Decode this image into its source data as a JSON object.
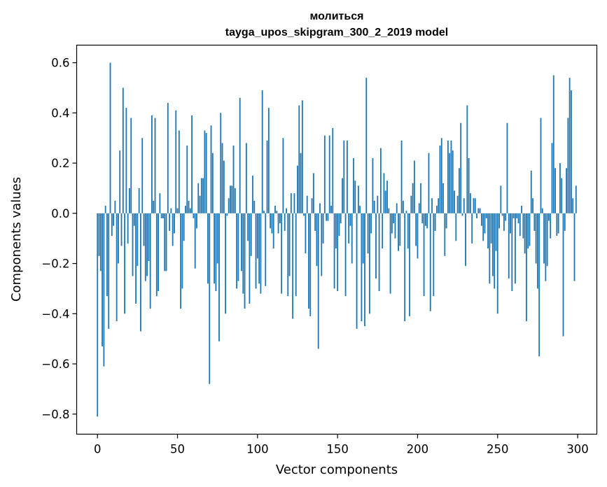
{
  "chart_data": {
    "type": "bar",
    "title": "молиться",
    "subtitle": "tayga_upos_skipgram_300_2_2019 model",
    "xlabel": "Vector components",
    "ylabel": "Components values",
    "xlim": [
      -13,
      312
    ],
    "ylim": [
      -0.88,
      0.67
    ],
    "xticks": [
      0,
      50,
      100,
      150,
      200,
      250,
      300
    ],
    "xtick_labels": [
      "0",
      "50",
      "100",
      "150",
      "200",
      "250",
      "300"
    ],
    "yticks": [
      -0.8,
      -0.6,
      -0.4,
      -0.2,
      0.0,
      0.2,
      0.4,
      0.6
    ],
    "ytick_labels": [
      "−0.8",
      "−0.6",
      "−0.4",
      "−0.2",
      "0.0",
      "0.2",
      "0.4",
      "0.6"
    ],
    "color": "#1f77b4",
    "values": [
      -0.81,
      -0.17,
      -0.23,
      -0.53,
      -0.61,
      0.03,
      -0.33,
      -0.46,
      0.6,
      -0.09,
      -0.05,
      0.05,
      -0.43,
      -0.2,
      0.25,
      -0.13,
      0.5,
      -0.4,
      0.42,
      -0.12,
      0.1,
      0.38,
      -0.25,
      -0.05,
      -0.36,
      -0.21,
      0.1,
      -0.47,
      0.3,
      -0.13,
      -0.27,
      -0.25,
      -0.19,
      -0.38,
      0.39,
      0.05,
      0.38,
      -0.33,
      -0.31,
      0.08,
      -0.02,
      -0.02,
      -0.23,
      -0.23,
      0.44,
      -0.07,
      0.02,
      -0.13,
      -0.08,
      0.41,
      0.02,
      0.33,
      -0.38,
      -0.3,
      -0.11,
      0.03,
      0.27,
      0.05,
      0.02,
      0.39,
      -0.02,
      -0.22,
      -0.06,
      0.12,
      0.07,
      0.14,
      0.14,
      0.33,
      0.32,
      -0.28,
      -0.68,
      0.35,
      0.24,
      -0.28,
      -0.31,
      -0.2,
      -0.51,
      0.4,
      0.28,
      0.21,
      -0.4,
      -0.01,
      0.06,
      0.11,
      0.11,
      0.27,
      0.1,
      -0.3,
      -0.27,
      0.46,
      -0.23,
      -0.32,
      -0.38,
      0.28,
      -0.11,
      -0.36,
      -0.17,
      0.15,
      0.05,
      -0.3,
      -0.18,
      -0.28,
      -0.32,
      0.49,
      0.01,
      -0.29,
      0.29,
      0.42,
      -0.06,
      -0.08,
      -0.14,
      0.03,
      0.01,
      -0.08,
      -0.04,
      -0.32,
      0.3,
      -0.07,
      0.02,
      -0.33,
      -0.25,
      0.08,
      -0.42,
      0.08,
      -0.33,
      0.19,
      0.43,
      0.24,
      0.45,
      -0.01,
      -0.16,
      0.07,
      -0.38,
      -0.41,
      0.06,
      0.16,
      -0.07,
      -0.21,
      -0.54,
      0.04,
      -0.25,
      -0.12,
      0.31,
      -0.03,
      -0.03,
      0.31,
      0.03,
      0.34,
      -0.3,
      -0.14,
      -0.31,
      -0.09,
      -0.04,
      0.14,
      0.29,
      -0.33,
      0.29,
      -0.12,
      -0.05,
      -0.2,
      0.22,
      0.13,
      -0.46,
      0.11,
      0.03,
      -0.43,
      -0.2,
      -0.45,
      0.54,
      -0.16,
      -0.4,
      -0.08,
      0.22,
      0.05,
      -0.26,
      0.07,
      -0.31,
      0.26,
      -0.14,
      0.16,
      0.09,
      0.13,
      0.02,
      -0.32,
      -0.08,
      -0.04,
      -0.1,
      0.04,
      -0.15,
      -0.13,
      0.29,
      0.05,
      -0.43,
      0.01,
      -0.14,
      -0.41,
      0.07,
      0.12,
      0.21,
      -0.13,
      -0.18,
      0.04,
      0.12,
      -0.04,
      -0.33,
      -0.05,
      -0.06,
      0.24,
      -0.39,
      0.06,
      -0.33,
      -0.07,
      0.03,
      0.06,
      0.27,
      0.3,
      0.12,
      -0.17,
      -0.06,
      0.29,
      0.24,
      0.29,
      0.25,
      0.09,
      -0.11,
      0.07,
      0.18,
      0.36,
      -0.01,
      0.06,
      -0.21,
      0.43,
      0.22,
      0.08,
      -0.12,
      0.06,
      0.06,
      -0.02,
      0.02,
      0.02,
      -0.05,
      -0.11,
      -0.08,
      -0.02,
      -0.14,
      -0.28,
      -0.12,
      -0.25,
      -0.3,
      -0.15,
      -0.4,
      -0.06,
      0.11,
      -0.01,
      -0.07,
      -0.03,
      0.36,
      -0.26,
      -0.08,
      -0.31,
      -0.02,
      -0.28,
      -0.02,
      -0.04,
      -0.09,
      0.03,
      -0.1,
      -0.16,
      -0.43,
      -0.14,
      -0.13,
      0.17,
      0.06,
      -0.07,
      -0.2,
      -0.3,
      -0.57,
      0.38,
      0.02,
      -0.2,
      -0.27,
      -0.21,
      -0.03,
      -0.1,
      0.28,
      0.55,
      0.18,
      -0.09,
      -0.08,
      0.2,
      0.14,
      -0.49,
      -0.07,
      0.18,
      0.38,
      0.54,
      0.49,
      0.06,
      -0.27,
      0.11
    ]
  }
}
